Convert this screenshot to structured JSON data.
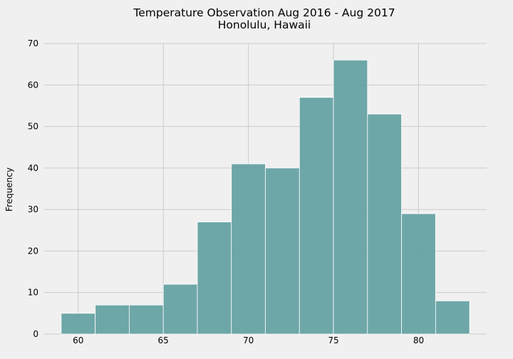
{
  "chart_data": {
    "type": "bar",
    "title": "Temperature Observation Aug 2016 - Aug 2017",
    "subtitle": "Honolulu, Hawaii",
    "xlabel": "",
    "ylabel": "Frequency",
    "xlim": [
      58,
      84
    ],
    "ylim": [
      0,
      70
    ],
    "xticks": [
      60,
      65,
      70,
      75,
      80
    ],
    "yticks": [
      0,
      10,
      20,
      30,
      40,
      50,
      60,
      70
    ],
    "grid": true,
    "bins": [
      {
        "x0": 59,
        "x1": 61,
        "value": 5
      },
      {
        "x0": 61,
        "x1": 63,
        "value": 7
      },
      {
        "x0": 63,
        "x1": 65,
        "value": 7
      },
      {
        "x0": 65,
        "x1": 67,
        "value": 12
      },
      {
        "x0": 67,
        "x1": 69,
        "value": 27
      },
      {
        "x0": 69,
        "x1": 71,
        "value": 41
      },
      {
        "x0": 71,
        "x1": 73,
        "value": 40
      },
      {
        "x0": 73,
        "x1": 75,
        "value": 57
      },
      {
        "x0": 75,
        "x1": 77,
        "value": 66
      },
      {
        "x0": 77,
        "x1": 79,
        "value": 53
      },
      {
        "x0": 79,
        "x1": 81,
        "value": 29
      },
      {
        "x0": 81,
        "x1": 83,
        "value": 8
      }
    ],
    "bar_color": "#5f9ea0",
    "bar_edge_color": "#ffffff",
    "grid_color": "#cbcbcb",
    "background_color": "#f0f0f0"
  }
}
